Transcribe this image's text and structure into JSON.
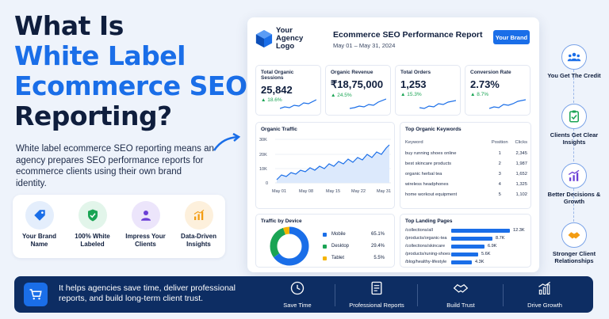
{
  "headline": {
    "line1": "What Is",
    "line2": "White Label",
    "line3": "Ecommerce SEO",
    "line4": "Reporting?"
  },
  "intro": "White label ecommerce SEO reporting means an agency prepares SEO performance reports for ecommerce clients using their own brand identity.",
  "features": [
    {
      "label": "Your Brand Name",
      "icon": "tag-icon",
      "color": "#1a6ee8"
    },
    {
      "label": "100% White Labeled",
      "icon": "shield-check-icon",
      "color": "#1aa454"
    },
    {
      "label": "Impress Your Clients",
      "icon": "user-icon",
      "color": "#6b3fd6"
    },
    {
      "label": "Data-Driven Insights",
      "icon": "bar-chart-icon",
      "color": "#f39c12"
    }
  ],
  "report": {
    "logo": "Your Agency Logo",
    "title": "Ecommerce SEO Performance Report",
    "date": "May 01 – May 31, 2024",
    "brand_button": "Your Brand",
    "kpis": [
      {
        "label": "Total Organic Sessions",
        "value": "25,842",
        "delta": "▲ 18.6%"
      },
      {
        "label": "Organic Revenue",
        "value": "₹18,75,000",
        "delta": "▲ 24.5%"
      },
      {
        "label": "Total Orders",
        "value": "1,253",
        "delta": "▲ 15.3%"
      },
      {
        "label": "Conversion Rate",
        "value": "2.73%",
        "delta": "▲ 8.7%"
      }
    ],
    "traffic": {
      "title": "Organic Traffic",
      "y_ticks": [
        "30K",
        "20K",
        "10K",
        "0"
      ],
      "x_ticks": [
        "May 01",
        "May 08",
        "May 15",
        "May 22",
        "May 31"
      ]
    },
    "keywords": {
      "title": "Top Organic Keywords",
      "headers": [
        "Keyword",
        "Position",
        "Clicks"
      ],
      "rows": [
        [
          "buy running shoes online",
          "1",
          "2,345"
        ],
        [
          "best skincare products",
          "2",
          "1,987"
        ],
        [
          "organic herbal tea",
          "3",
          "1,652"
        ],
        [
          "wireless headphones",
          "4",
          "1,325"
        ],
        [
          "home workout equipment",
          "5",
          "1,102"
        ]
      ]
    },
    "device": {
      "title": "Traffic by Device",
      "items": [
        {
          "name": "Mobile",
          "pct": "65.1%",
          "value": 65.1,
          "color": "#1a6ee8"
        },
        {
          "name": "Desktop",
          "pct": "29.4%",
          "value": 29.4,
          "color": "#1aa454"
        },
        {
          "name": "Tablet",
          "pct": "5.5%",
          "value": 5.5,
          "color": "#f5b400"
        }
      ]
    },
    "landing": {
      "title": "Top Landing Pages",
      "rows": [
        {
          "page": "/collections/all",
          "label": "12.3K",
          "value": 12.3
        },
        {
          "page": "/products/organic-tea",
          "label": "8.7K",
          "value": 8.7
        },
        {
          "page": "/collections/skincare",
          "label": "6.9K",
          "value": 6.9
        },
        {
          "page": "/products/runing-shoes",
          "label": "5.6K",
          "value": 5.6
        },
        {
          "page": "/blog/healthy-lifestyle",
          "label": "4.3K",
          "value": 4.3
        }
      ]
    }
  },
  "side": [
    {
      "label": "You Get The Credit",
      "icon": "group-icon"
    },
    {
      "label": "Clients Get Clear Insights",
      "icon": "clipboard-check-icon"
    },
    {
      "label": "Better Decisions & Growth",
      "icon": "growth-chart-icon"
    },
    {
      "label": "Stronger Client Relationships",
      "icon": "handshake-icon"
    }
  ],
  "bottom": {
    "text": "It helps agencies save time, deliver professional reports, and build long-term client trust.",
    "items": [
      {
        "label": "Save Time",
        "icon": "clock-icon"
      },
      {
        "label": "Professional Reports",
        "icon": "document-icon"
      },
      {
        "label": "Build Trust",
        "icon": "handshake-icon"
      },
      {
        "label": "Drive Growth",
        "icon": "growth-icon"
      }
    ]
  }
}
